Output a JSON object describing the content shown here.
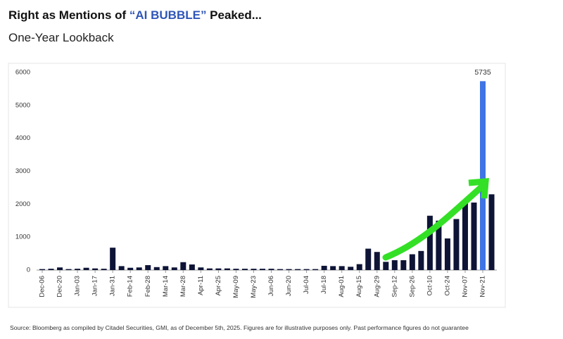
{
  "chart_data": {
    "type": "bar",
    "title": {
      "prefix": "Right as Mentions of ",
      "highlight": "“AI BUBBLE”",
      "suffix": " Peaked..."
    },
    "subtitle": "One-Year Lookback",
    "source": "Source: Bloomberg as compiled by Citadel Securities, GMI, as of December 5th, 2025. Figures are for illustrative purposes only. Past performance figures do not guarantee",
    "categories": [
      "Dec-06",
      null,
      "Dec-20",
      null,
      "Jan-03",
      null,
      "Jan-17",
      null,
      "Jan-31",
      null,
      "Feb-14",
      null,
      "Feb-28",
      null,
      "Mar-14",
      null,
      "Mar-28",
      null,
      "Apr-11",
      null,
      "Apr-25",
      null,
      "May-09",
      null,
      "May-23",
      null,
      "Jun-06",
      null,
      "Jun-20",
      null,
      "Jul-04",
      null,
      "Jul-18",
      null,
      "Aug-01",
      null,
      "Aug-15",
      null,
      "Aug-29",
      null,
      "Sep-12",
      null,
      "Sep-26",
      null,
      "Oct-10",
      null,
      "Oct-24",
      null,
      "Nov-07",
      null,
      "Nov-21",
      null
    ],
    "values": [
      30,
      40,
      80,
      30,
      40,
      70,
      50,
      40,
      680,
      120,
      70,
      80,
      150,
      90,
      120,
      80,
      240,
      170,
      80,
      50,
      50,
      50,
      40,
      40,
      40,
      40,
      40,
      30,
      30,
      30,
      30,
      30,
      130,
      120,
      120,
      100,
      180,
      650,
      550,
      250,
      300,
      300,
      480,
      580,
      1650,
      1500,
      960,
      1550,
      2050,
      2050,
      5735,
      2300
    ],
    "color": "#0e1436",
    "highlight_color": "#3f74e4",
    "highlight_category": "Nov-21",
    "title_highlight_color": "#2f55b8",
    "annotation_color": "#33e026",
    "ylim": [
      0,
      6000
    ],
    "yticks": [
      0,
      1000,
      2000,
      3000,
      4000,
      5000,
      6000
    ],
    "grid": false
  }
}
